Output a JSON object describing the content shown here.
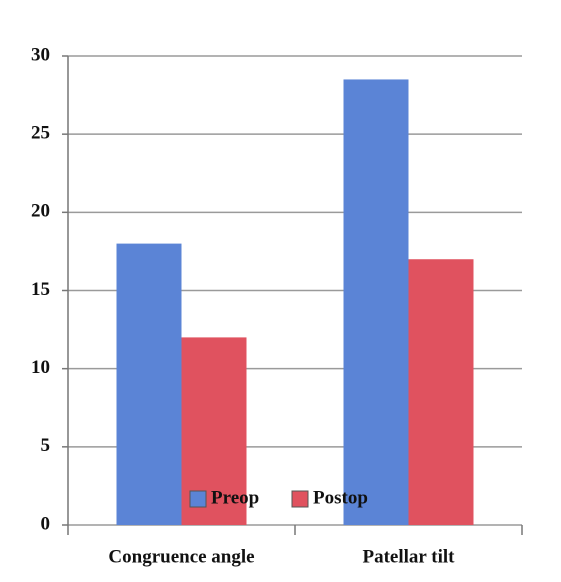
{
  "chart_data": {
    "type": "bar",
    "categories": [
      "Congruence angle",
      "Patellar tilt"
    ],
    "series": [
      {
        "name": "Preop",
        "color": "#5b84d6",
        "values": [
          18,
          28.5
        ]
      },
      {
        "name": "Postop",
        "color": "#e0525f",
        "values": [
          12,
          17
        ]
      }
    ],
    "ylim": [
      0,
      30
    ],
    "yticks": [
      0,
      5,
      10,
      15,
      20,
      25,
      30
    ],
    "grid": true,
    "legend": "bottom"
  }
}
